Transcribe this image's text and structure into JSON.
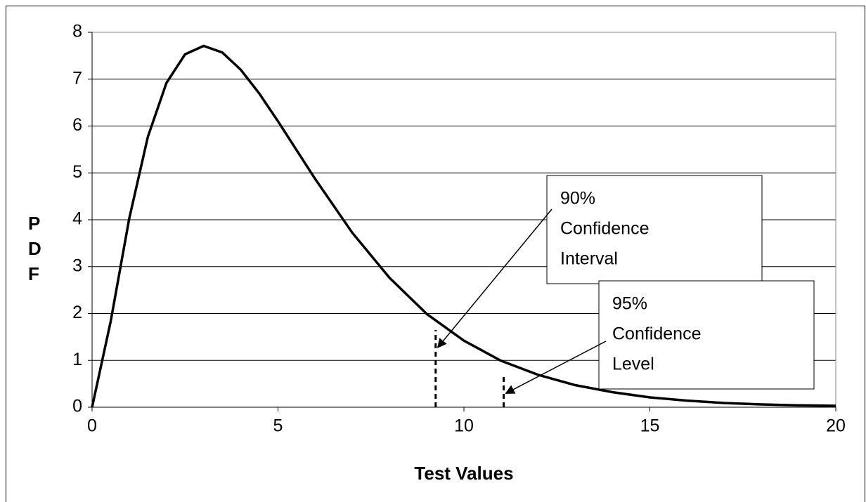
{
  "chart_data": {
    "type": "line",
    "x_label": "Test Values",
    "y_label": "PDF",
    "x": [
      0,
      0.5,
      1,
      1.5,
      2,
      2.5,
      3,
      3.5,
      4,
      4.5,
      5,
      6,
      7,
      8,
      9,
      10,
      11,
      12,
      13,
      14,
      15,
      16,
      17,
      18,
      19,
      20
    ],
    "series": [
      {
        "color": "#000000",
        "values": [
          0,
          1.83,
          4.03,
          5.77,
          6.92,
          7.53,
          7.71,
          7.57,
          7.2,
          6.69,
          6.1,
          4.87,
          3.72,
          2.76,
          1.99,
          1.42,
          0.99,
          0.69,
          0.47,
          0.32,
          0.21,
          0.14,
          0.09,
          0.06,
          0.04,
          0.03
        ]
      }
    ],
    "xlim": [
      0,
      20
    ],
    "xticks": [
      0,
      5,
      10,
      15,
      20
    ],
    "ylim": [
      0,
      8
    ],
    "yticks": [
      0,
      1,
      2,
      3,
      4,
      5,
      6,
      7,
      8
    ],
    "grid": true,
    "annotations": [
      {
        "lines": [
          "90%",
          "Confidence",
          "Interval"
        ],
        "x": 9.24,
        "y": 1.65
      },
      {
        "lines": [
          "95%",
          "Confidence",
          "Level"
        ],
        "x": 11.07,
        "y": 0.67
      }
    ]
  }
}
